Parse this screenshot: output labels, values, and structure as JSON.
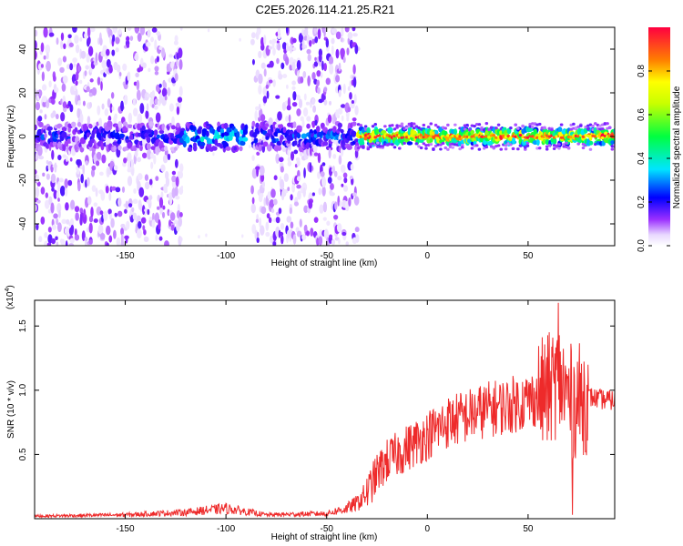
{
  "title": "C2E5.2026.114.21.25.R21",
  "chart_data": [
    {
      "type": "heatmap",
      "xlabel": "Height of straight line (km)",
      "ylabel": "Frequency (Hz)",
      "xlim": [
        -195,
        93
      ],
      "ylim": [
        -50,
        50
      ],
      "xticks": [
        -150,
        -100,
        -50,
        0,
        50
      ],
      "yticks": [
        -40,
        -20,
        0,
        20,
        40
      ],
      "colorbar": {
        "label": "Normalized spectral amplitude",
        "range": [
          0.0,
          1.0
        ],
        "ticks": [
          "0.0",
          "0.2",
          "0.4",
          "0.6",
          "0.8"
        ],
        "tick_values": [
          0.0,
          0.2,
          0.4,
          0.6,
          0.8
        ]
      },
      "description_bands": [
        {
          "x_range": [
            -195,
            -123
          ],
          "amplitude_near_0Hz": 0.25,
          "broadband_noise": true
        },
        {
          "x_range": [
            -123,
            -90
          ],
          "amplitude_near_0Hz": 0.4,
          "broadband_noise": false
        },
        {
          "x_range": [
            -88,
            -35
          ],
          "amplitude_near_0Hz": 0.3,
          "broadband_noise": true
        },
        {
          "x_range": [
            -35,
            93
          ],
          "amplitude_near_0Hz": 0.9,
          "broadband_noise": false
        }
      ]
    },
    {
      "type": "line",
      "xlabel": "Height of straight line (km)",
      "ylabel": "SNR (10 * v/v)",
      "y_multiplier": "(x10",
      "y_multiplier_exp": "4",
      "y_multiplier_close": ")",
      "xlim": [
        -195,
        93
      ],
      "ylim": [
        0,
        1.7
      ],
      "xticks": [
        -150,
        -100,
        -50,
        0,
        50
      ],
      "yticks": [
        0.5,
        1.0,
        1.5
      ],
      "ytick_labels": [
        "0.5",
        "1.0",
        "1.5"
      ],
      "series": [
        {
          "name": "SNR",
          "color": "#ee2a2a",
          "envelope": {
            "x": [
              -195,
              -150,
              -120,
              -100,
              -80,
              -50,
              -40,
              -35,
              -30,
              -25,
              -20,
              -15,
              -10,
              -5,
              0,
              5,
              10,
              20,
              30,
              40,
              50,
              55,
              60,
              63,
              65,
              68,
              70,
              72,
              75,
              80,
              85,
              93
            ],
            "y": [
              0.02,
              0.03,
              0.05,
              0.08,
              0.03,
              0.04,
              0.08,
              0.12,
              0.2,
              0.35,
              0.45,
              0.5,
              0.55,
              0.6,
              0.65,
              0.7,
              0.75,
              0.8,
              0.85,
              0.88,
              0.92,
              0.95,
              1.0,
              1.05,
              1.1,
              1.0,
              0.95,
              0.9,
              0.92,
              0.95,
              0.93,
              0.92
            ]
          },
          "peak": {
            "x": 65,
            "y": 1.68
          },
          "min_in_burst": {
            "x": 72,
            "y": 0.03
          }
        }
      ]
    }
  ],
  "colors": {
    "line": "#ee2a2a",
    "noise": "#8a2be2",
    "axes": "#000000"
  }
}
